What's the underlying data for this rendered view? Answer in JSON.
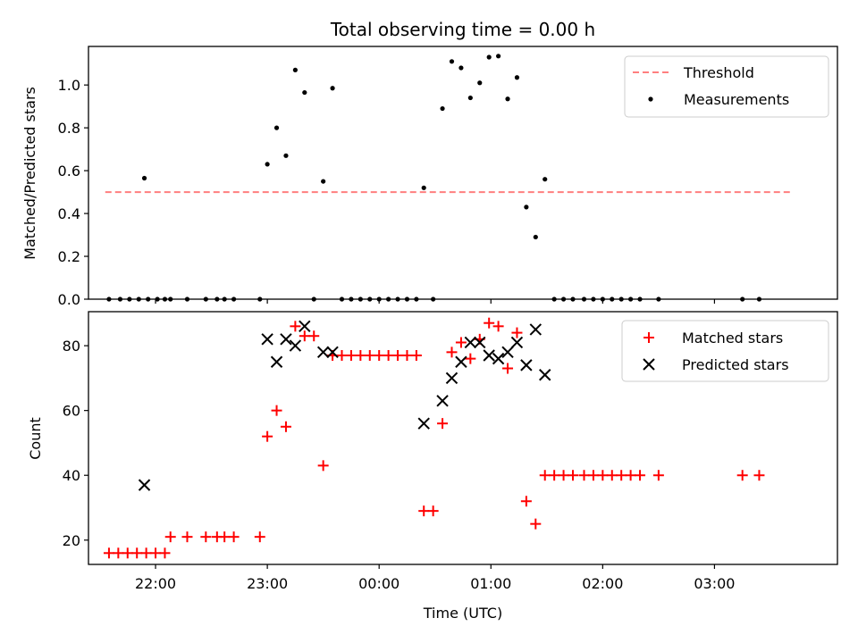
{
  "title": "Total observing time = 0.00 h",
  "xlabel": "Time (UTC)",
  "x_tick_labels": [
    "22:00",
    "23:00",
    "00:00",
    "01:00",
    "02:00",
    "03:00"
  ],
  "chart_data": [
    {
      "type": "scatter",
      "ylabel": "Matched/Predicted stars",
      "xlim": [
        "21:24",
        "04:06"
      ],
      "ylim": [
        0,
        1.18
      ],
      "y_ticks": [
        "0.0",
        "0.2",
        "0.4",
        "0.6",
        "0.8",
        "1.0"
      ],
      "grid": false,
      "legend_position": "upper right",
      "series": [
        {
          "name": "Threshold",
          "kind": "dashed-line",
          "color": "#ff7f7f",
          "x": [
            "21:33",
            "03:42"
          ],
          "y": [
            0.5,
            0.5
          ]
        },
        {
          "name": "Measurements",
          "kind": "points",
          "color": "#000000",
          "points": [
            [
              "21:35",
              0
            ],
            [
              "21:41",
              0
            ],
            [
              "21:46",
              0
            ],
            [
              "21:51",
              0
            ],
            [
              "21:56",
              0
            ],
            [
              "22:01",
              0
            ],
            [
              "22:05",
              0
            ],
            [
              "21:54",
              0.565
            ],
            [
              "22:08",
              0
            ],
            [
              "22:17",
              0
            ],
            [
              "22:27",
              0
            ],
            [
              "22:33",
              0
            ],
            [
              "22:37",
              0
            ],
            [
              "22:42",
              0
            ],
            [
              "22:56",
              0
            ],
            [
              "23:00",
              0.63
            ],
            [
              "23:05",
              0.8
            ],
            [
              "23:10",
              0.67
            ],
            [
              "23:15",
              1.07
            ],
            [
              "23:20",
              0.965
            ],
            [
              "23:25",
              0
            ],
            [
              "23:30",
              0.55
            ],
            [
              "23:35",
              0.985
            ],
            [
              "23:40",
              0
            ],
            [
              "23:45",
              0
            ],
            [
              "23:50",
              0
            ],
            [
              "23:55",
              0
            ],
            [
              "00:00",
              0
            ],
            [
              "00:05",
              0
            ],
            [
              "00:10",
              0
            ],
            [
              "00:15",
              0
            ],
            [
              "00:20",
              0
            ],
            [
              "00:24",
              0.52
            ],
            [
              "00:29",
              0
            ],
            [
              "00:34",
              0.89
            ],
            [
              "00:39",
              1.11
            ],
            [
              "00:44",
              1.08
            ],
            [
              "00:49",
              0.94
            ],
            [
              "00:54",
              1.01
            ],
            [
              "00:59",
              1.13
            ],
            [
              "01:04",
              1.135
            ],
            [
              "01:09",
              0.935
            ],
            [
              "01:14",
              1.035
            ],
            [
              "01:19",
              0.43
            ],
            [
              "01:24",
              0.29
            ],
            [
              "01:29",
              0.56
            ],
            [
              "01:34",
              0
            ],
            [
              "01:39",
              0
            ],
            [
              "01:44",
              0
            ],
            [
              "01:50",
              0
            ],
            [
              "01:55",
              0
            ],
            [
              "02:00",
              0
            ],
            [
              "02:05",
              0
            ],
            [
              "02:10",
              0
            ],
            [
              "02:15",
              0
            ],
            [
              "02:20",
              0
            ],
            [
              "02:30",
              0
            ],
            [
              "03:15",
              0
            ],
            [
              "03:24",
              0
            ]
          ]
        }
      ]
    },
    {
      "type": "scatter",
      "ylabel": "Count",
      "xlim": [
        "21:24",
        "04:06"
      ],
      "ylim": [
        12.5,
        90.5
      ],
      "y_ticks": [
        "20",
        "40",
        "60",
        "80"
      ],
      "grid": false,
      "legend_position": "upper right",
      "series": [
        {
          "name": "Matched stars",
          "marker": "plus",
          "color": "#ff0000",
          "points": [
            [
              "21:35",
              16
            ],
            [
              "21:40",
              16
            ],
            [
              "21:45",
              16
            ],
            [
              "21:50",
              16
            ],
            [
              "21:55",
              16
            ],
            [
              "22:00",
              16
            ],
            [
              "22:05",
              16
            ],
            [
              "22:08",
              21
            ],
            [
              "22:17",
              21
            ],
            [
              "22:27",
              21
            ],
            [
              "22:33",
              21
            ],
            [
              "22:37",
              21
            ],
            [
              "22:42",
              21
            ],
            [
              "22:56",
              21
            ],
            [
              "23:00",
              52
            ],
            [
              "23:05",
              60
            ],
            [
              "23:10",
              55
            ],
            [
              "23:15",
              86
            ],
            [
              "23:20",
              83
            ],
            [
              "23:25",
              83
            ],
            [
              "23:30",
              43
            ],
            [
              "23:35",
              77
            ],
            [
              "23:40",
              77
            ],
            [
              "23:45",
              77
            ],
            [
              "23:50",
              77
            ],
            [
              "23:55",
              77
            ],
            [
              "00:00",
              77
            ],
            [
              "00:05",
              77
            ],
            [
              "00:10",
              77
            ],
            [
              "00:15",
              77
            ],
            [
              "00:20",
              77
            ],
            [
              "00:24",
              29
            ],
            [
              "00:29",
              29
            ],
            [
              "00:34",
              56
            ],
            [
              "00:39",
              78
            ],
            [
              "00:44",
              81
            ],
            [
              "00:49",
              76
            ],
            [
              "00:54",
              82
            ],
            [
              "00:59",
              87
            ],
            [
              "01:04",
              86
            ],
            [
              "01:09",
              73
            ],
            [
              "01:14",
              84
            ],
            [
              "01:19",
              32
            ],
            [
              "01:24",
              25
            ],
            [
              "01:29",
              40
            ],
            [
              "01:34",
              40
            ],
            [
              "01:39",
              40
            ],
            [
              "01:44",
              40
            ],
            [
              "01:50",
              40
            ],
            [
              "01:55",
              40
            ],
            [
              "02:00",
              40
            ],
            [
              "02:05",
              40
            ],
            [
              "02:10",
              40
            ],
            [
              "02:15",
              40
            ],
            [
              "02:20",
              40
            ],
            [
              "02:30",
              40
            ],
            [
              "03:15",
              40
            ],
            [
              "03:24",
              40
            ]
          ]
        },
        {
          "name": "Predicted stars",
          "marker": "x",
          "color": "#000000",
          "points": [
            [
              "21:54",
              37
            ],
            [
              "23:00",
              82
            ],
            [
              "23:05",
              75
            ],
            [
              "23:10",
              82
            ],
            [
              "23:15",
              80
            ],
            [
              "23:20",
              86
            ],
            [
              "23:30",
              78
            ],
            [
              "23:35",
              78
            ],
            [
              "00:24",
              56
            ],
            [
              "00:34",
              63
            ],
            [
              "00:39",
              70
            ],
            [
              "00:44",
              75
            ],
            [
              "00:49",
              81
            ],
            [
              "00:54",
              81
            ],
            [
              "00:59",
              77
            ],
            [
              "01:04",
              76
            ],
            [
              "01:09",
              78
            ],
            [
              "01:14",
              81
            ],
            [
              "01:19",
              74
            ],
            [
              "01:24",
              85
            ],
            [
              "01:29",
              71
            ]
          ]
        }
      ]
    }
  ]
}
